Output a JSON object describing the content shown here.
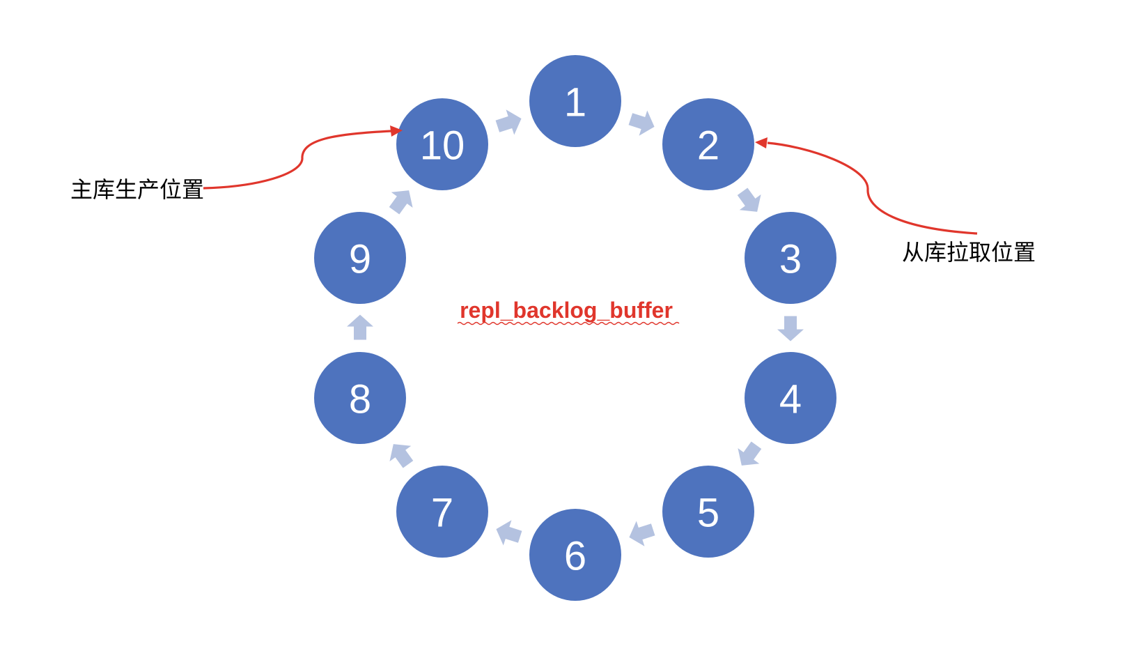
{
  "buffer_name": "repl_backlog_buffer",
  "nodes": [
    "1",
    "2",
    "3",
    "4",
    "5",
    "6",
    "7",
    "8",
    "9",
    "10"
  ],
  "pointers": {
    "master_write": "主库生产位置",
    "replica_read": "从库拉取位置"
  },
  "colors": {
    "node_fill": "#4e73be",
    "node_text": "#ffffff",
    "flow_arrow": "#b4c2e0",
    "accent_red": "#e0362c"
  }
}
